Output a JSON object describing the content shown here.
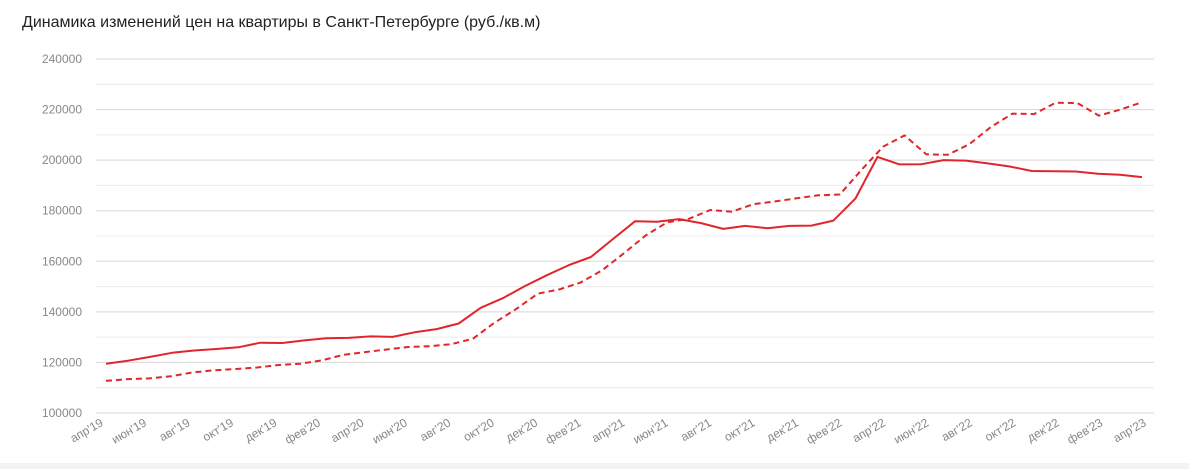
{
  "chart_data": {
    "type": "line",
    "title": "Динамика изменений цен на квартиры в Санкт-Петербурге (руб./кв.м)",
    "xlabel": "",
    "ylabel": "",
    "ylim": [
      100000,
      240000
    ],
    "yticks": [
      "100000",
      "120000",
      "140000",
      "160000",
      "180000",
      "200000",
      "220000",
      "240000"
    ],
    "grid": true,
    "xtick_labels": [
      "апр'19",
      "июн'19",
      "авг'19",
      "окт'19",
      "дек'19",
      "фев'20",
      "апр'20",
      "июн'20",
      "авг'20",
      "окт'20",
      "дек'20",
      "фев'21",
      "апр'21",
      "июн'21",
      "авг'21",
      "окт'21",
      "дек'21",
      "фев'22",
      "апр'22",
      "июн'22",
      "авг'22",
      "окт'22",
      "дек'22",
      "фев'23",
      "апр'23"
    ],
    "series": [
      {
        "style": "solid",
        "color": "#e0262b",
        "values": [
          119500,
          120700,
          122200,
          123800,
          124700,
          125300,
          126000,
          127800,
          127700,
          128700,
          129600,
          129700,
          130300,
          130100,
          131900,
          133200,
          135400,
          141600,
          145400,
          150200,
          154500,
          158500,
          161700,
          168800,
          175800,
          175600,
          176700,
          175100,
          172800,
          174000,
          173100,
          174000,
          174100,
          176100,
          184800,
          201300,
          198300,
          198400,
          200000,
          199800,
          198700,
          197500,
          195700,
          195600,
          195500,
          194600,
          194200,
          193300
        ]
      },
      {
        "style": "dashed",
        "color": "#e0262b",
        "values": [
          112700,
          113400,
          113700,
          114500,
          116000,
          116900,
          117400,
          118000,
          119000,
          119500,
          120800,
          123000,
          124100,
          125100,
          126100,
          126400,
          127200,
          129400,
          135700,
          141100,
          147200,
          148900,
          151600,
          156500,
          163200,
          170200,
          175400,
          176800,
          180300,
          179600,
          182600,
          183700,
          184900,
          186100,
          186400,
          196100,
          205300,
          209800,
          202300,
          202100,
          206300,
          213100,
          218400,
          218200,
          222700,
          222600,
          217600,
          220000,
          222900
        ]
      }
    ]
  }
}
